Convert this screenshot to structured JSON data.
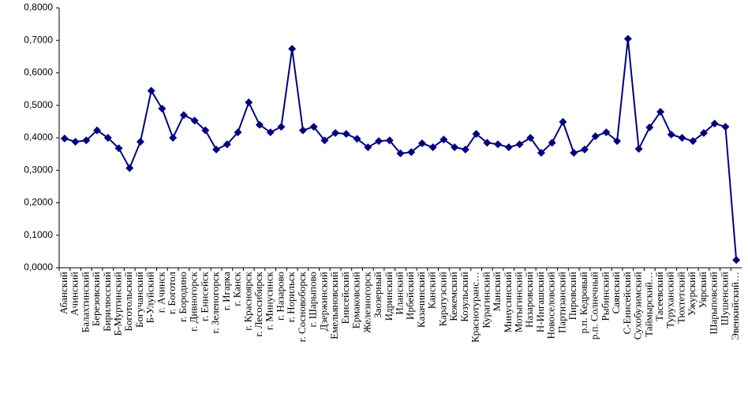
{
  "chart_data": {
    "type": "line",
    "categories": [
      "Абанский",
      "Ачинский",
      "Балахтинский",
      "Березовский",
      "Бирилюсский",
      "Б-Муртинский",
      "Боготольский",
      "Богучанский",
      "Б-Улуйский",
      "г. Ачинск",
      "г. Боготол",
      "г. Бородино",
      "г. Дивногорск",
      "г. Енисейск",
      "г. Зеленогорск",
      "г. Игарка",
      "г. Канск",
      "г. Красноярск",
      "г. Лесосибирск",
      "г. Минусинск",
      "г. Назарово",
      "г. Норильск",
      "г. Сосновоборск",
      "г. Шарыпово",
      "Дзержинский",
      "Емельяновский",
      "Енисейский",
      "Ермаковский",
      "Железногорск",
      "Заозерный",
      "Идринский",
      "Иланский",
      "Ирбейский",
      "Казачинский",
      "Канский",
      "Каратузский",
      "Кежемский",
      "Козульский",
      "Краснотуранс…",
      "Курагинский",
      "Манский",
      "Минусинский",
      "Мотыгинский",
      "Назаровский",
      "Н-Ингашский",
      "Новоселовский",
      "Партизанский",
      "Пировский",
      "р.п. Кедровый",
      "р.п. Солнечный",
      "Рыбинский",
      "Саянский",
      "С-Енисейский",
      "Сухобузимский",
      "Таймырский…",
      "Тасеевский",
      "Туруханский",
      "Тюхтетский",
      "Ужурский",
      "Уярский",
      "Шарыповский",
      "Шушенский",
      "Эвенкийский…"
    ],
    "series": [
      {
        "color": "#000080",
        "values": [
          0.398,
          0.388,
          0.392,
          0.423,
          0.4,
          0.368,
          0.307,
          0.388,
          0.545,
          0.49,
          0.4,
          0.47,
          0.453,
          0.423,
          0.364,
          0.38,
          0.417,
          0.509,
          0.44,
          0.417,
          0.434,
          0.674,
          0.423,
          0.434,
          0.392,
          0.415,
          0.412,
          0.397,
          0.371,
          0.39,
          0.392,
          0.352,
          0.356,
          0.383,
          0.371,
          0.395,
          0.371,
          0.364,
          0.412,
          0.385,
          0.38,
          0.371,
          0.38,
          0.4,
          0.354,
          0.385,
          0.449,
          0.354,
          0.364,
          0.405,
          0.417,
          0.39,
          0.705,
          0.366,
          0.432,
          0.48,
          0.41,
          0.4,
          0.39,
          0.415,
          0.444,
          0.434,
          0.024
        ]
      }
    ],
    "ylim": [
      0,
      0.8
    ],
    "yticks": [
      {
        "value": 0,
        "label": "0,0000"
      },
      {
        "value": 0.1,
        "label": "0,1000"
      },
      {
        "value": 0.2,
        "label": "0,2000"
      },
      {
        "value": 0.3,
        "label": "0,3000"
      },
      {
        "value": 0.4,
        "label": "0,4000"
      },
      {
        "value": 0.5,
        "label": "0,5000"
      },
      {
        "value": 0.6,
        "label": "0,6000"
      },
      {
        "value": 0.7,
        "label": "0,7000"
      },
      {
        "value": 0.8,
        "label": "0,8000"
      }
    ],
    "grid": false
  }
}
